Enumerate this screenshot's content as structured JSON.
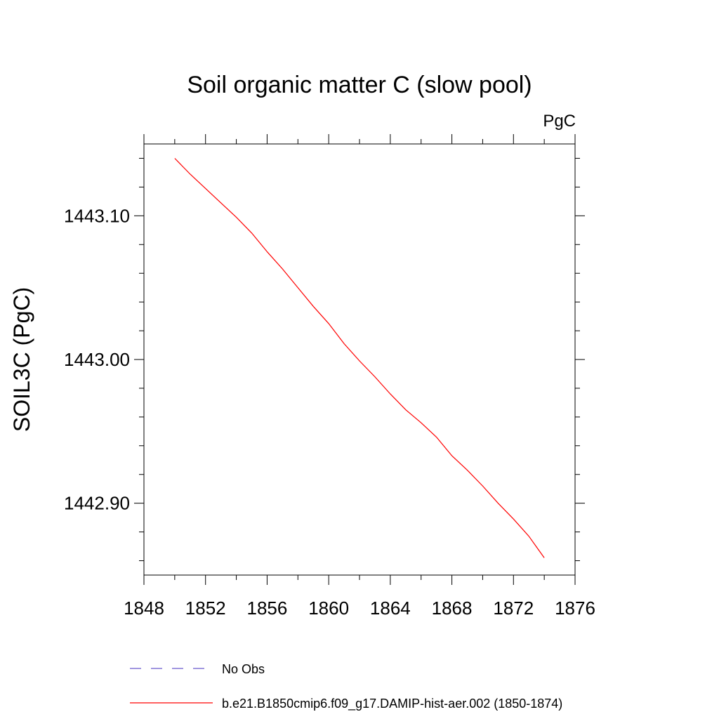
{
  "chart_data": {
    "type": "line",
    "title": "Soil organic matter C (slow pool)",
    "units_label": "PgC",
    "xlabel": "",
    "ylabel": "SOIL3C  (PgC)",
    "xlim": [
      1848,
      1876
    ],
    "ylim": [
      1442.85,
      1443.15
    ],
    "x_ticks": [
      1848,
      1852,
      1856,
      1860,
      1864,
      1868,
      1872,
      1876
    ],
    "x_tick_labels": [
      "1848",
      "1852",
      "1856",
      "1860",
      "1864",
      "1868",
      "1872",
      "1876"
    ],
    "x_minor_ticks": [
      1850,
      1854,
      1858,
      1862,
      1866,
      1870,
      1874
    ],
    "y_ticks": [
      1442.9,
      1443.0,
      1443.1
    ],
    "y_tick_labels": [
      "1442.90",
      "1443.00",
      "1443.10"
    ],
    "y_minor_ticks": [
      1442.86,
      1442.88,
      1442.92,
      1442.94,
      1442.96,
      1442.98,
      1443.02,
      1443.04,
      1443.06,
      1443.08,
      1443.12,
      1443.14
    ],
    "grid": false,
    "legend_position": "bottom",
    "series": [
      {
        "name": "b.e21.B1850cmip6.f09_g17.DAMIP-hist-aer.002 (1850-1874)",
        "color": "#ff0000",
        "dash": "solid",
        "x": [
          1850,
          1851,
          1852,
          1853,
          1854,
          1855,
          1856,
          1857,
          1858,
          1859,
          1860,
          1861,
          1862,
          1863,
          1864,
          1865,
          1866,
          1867,
          1868,
          1869,
          1870,
          1871,
          1872,
          1873,
          1874
        ],
        "y": [
          1443.14,
          1443.129,
          1443.119,
          1443.109,
          1443.099,
          1443.088,
          1443.075,
          1443.063,
          1443.05,
          1443.037,
          1443.025,
          1443.011,
          1442.999,
          1442.988,
          1442.976,
          1442.965,
          1442.956,
          1442.946,
          1442.933,
          1442.923,
          1442.912,
          1442.9,
          1442.889,
          1442.877,
          1442.862
        ]
      }
    ],
    "legend": [
      {
        "label": "No Obs",
        "color": "#6a5acd",
        "dash": "dashed"
      },
      {
        "label": "b.e21.B1850cmip6.f09_g17.DAMIP-hist-aer.002 (1850-1874)",
        "color": "#ff0000",
        "dash": "solid"
      }
    ]
  }
}
